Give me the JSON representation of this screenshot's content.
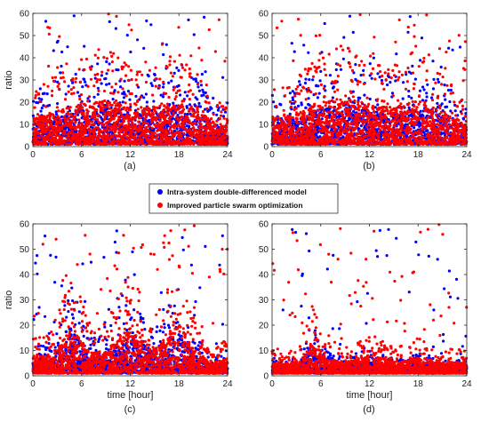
{
  "chart_data": [
    {
      "type": "scatter",
      "panel_label": "(a)",
      "xlabel": "",
      "ylabel": "ratio",
      "xlim": [
        0,
        24
      ],
      "ylim": [
        0,
        60
      ],
      "xticks": [
        0,
        6,
        12,
        18,
        24
      ],
      "yticks": [
        0,
        10,
        20,
        30,
        40,
        50,
        60
      ],
      "grid": false,
      "series": [
        {
          "name": "Intra-system double-differenced model",
          "color": "#0000ff",
          "density_profile": {
            "hours": [
              0,
              3,
              6,
              9,
              12,
              15,
              18,
              21,
              24
            ],
            "typical_upper_ratio": [
              20,
              28,
              34,
              40,
              30,
              32,
              38,
              26,
              14
            ]
          }
        },
        {
          "name": "Improved particle swarm optimization",
          "color": "#ff0000",
          "density_profile": {
            "hours": [
              0,
              3,
              6,
              9,
              12,
              15,
              18,
              21,
              24
            ],
            "typical_upper_ratio": [
              26,
              34,
              40,
              45,
              36,
              38,
              42,
              30,
              18
            ]
          }
        }
      ]
    },
    {
      "type": "scatter",
      "panel_label": "(b)",
      "xlabel": "",
      "ylabel": "",
      "xlim": [
        0,
        24
      ],
      "ylim": [
        0,
        60
      ],
      "xticks": [
        0,
        6,
        12,
        18,
        24
      ],
      "yticks": [
        0,
        10,
        20,
        30,
        40,
        50,
        60
      ],
      "grid": false,
      "series": [
        {
          "name": "Intra-system double-differenced model",
          "color": "#0000ff",
          "density_profile": {
            "hours": [
              0,
              3,
              6,
              9,
              12,
              15,
              18,
              21,
              24
            ],
            "typical_upper_ratio": [
              22,
              26,
              36,
              40,
              34,
              30,
              42,
              30,
              16
            ]
          }
        },
        {
          "name": "Improved particle swarm optimization",
          "color": "#ff0000",
          "density_profile": {
            "hours": [
              0,
              3,
              6,
              9,
              12,
              15,
              18,
              21,
              24
            ],
            "typical_upper_ratio": [
              28,
              32,
              42,
              46,
              40,
              36,
              46,
              34,
              20
            ]
          }
        }
      ]
    },
    {
      "type": "scatter",
      "panel_label": "(c)",
      "xlabel": "time [hour]",
      "ylabel": "ratio",
      "xlim": [
        0,
        24
      ],
      "ylim": [
        0,
        60
      ],
      "xticks": [
        0,
        6,
        12,
        18,
        24
      ],
      "yticks": [
        0,
        10,
        20,
        30,
        40,
        50,
        60
      ],
      "grid": false,
      "series": [
        {
          "name": "Intra-system double-differenced model",
          "color": "#0000ff",
          "density_profile": {
            "hours": [
              0,
              2,
              5,
              7,
              9,
              12,
              15,
              18,
              20,
              22,
              24
            ],
            "typical_upper_ratio": [
              12,
              10,
              36,
              14,
              16,
              34,
              18,
              38,
              16,
              6,
              10
            ]
          }
        },
        {
          "name": "Improved particle swarm optimization",
          "color": "#ff0000",
          "density_profile": {
            "hours": [
              0,
              2,
              5,
              7,
              9,
              12,
              15,
              18,
              20,
              22,
              24
            ],
            "typical_upper_ratio": [
              16,
              14,
              42,
              18,
              20,
              40,
              22,
              44,
              20,
              8,
              14
            ]
          }
        }
      ]
    },
    {
      "type": "scatter",
      "panel_label": "(d)",
      "xlabel": "time [hour]",
      "ylabel": "",
      "xlim": [
        0,
        24
      ],
      "ylim": [
        0,
        60
      ],
      "xticks": [
        0,
        6,
        12,
        18,
        24
      ],
      "yticks": [
        0,
        10,
        20,
        30,
        40,
        50,
        60
      ],
      "grid": false,
      "series": [
        {
          "name": "Intra-system double-differenced model",
          "color": "#0000ff",
          "density_profile": {
            "hours": [
              0,
              3,
              5,
              7,
              9,
              12,
              15,
              18,
              21,
              24
            ],
            "typical_upper_ratio": [
              6,
              6,
              20,
              8,
              6,
              10,
              6,
              8,
              6,
              6
            ]
          }
        },
        {
          "name": "Improved particle swarm optimization",
          "color": "#ff0000",
          "density_profile": {
            "hours": [
              0,
              3,
              5,
              7,
              9,
              12,
              15,
              18,
              21,
              24
            ],
            "typical_upper_ratio": [
              9,
              9,
              28,
              12,
              10,
              16,
              10,
              14,
              10,
              9
            ]
          }
        }
      ]
    }
  ],
  "legend": {
    "placement": "center",
    "items": [
      {
        "label": "Intra-system double-differenced model",
        "color": "#0000ff"
      },
      {
        "label": "Improved particle swarm optimization",
        "color": "#ff0000"
      }
    ]
  }
}
